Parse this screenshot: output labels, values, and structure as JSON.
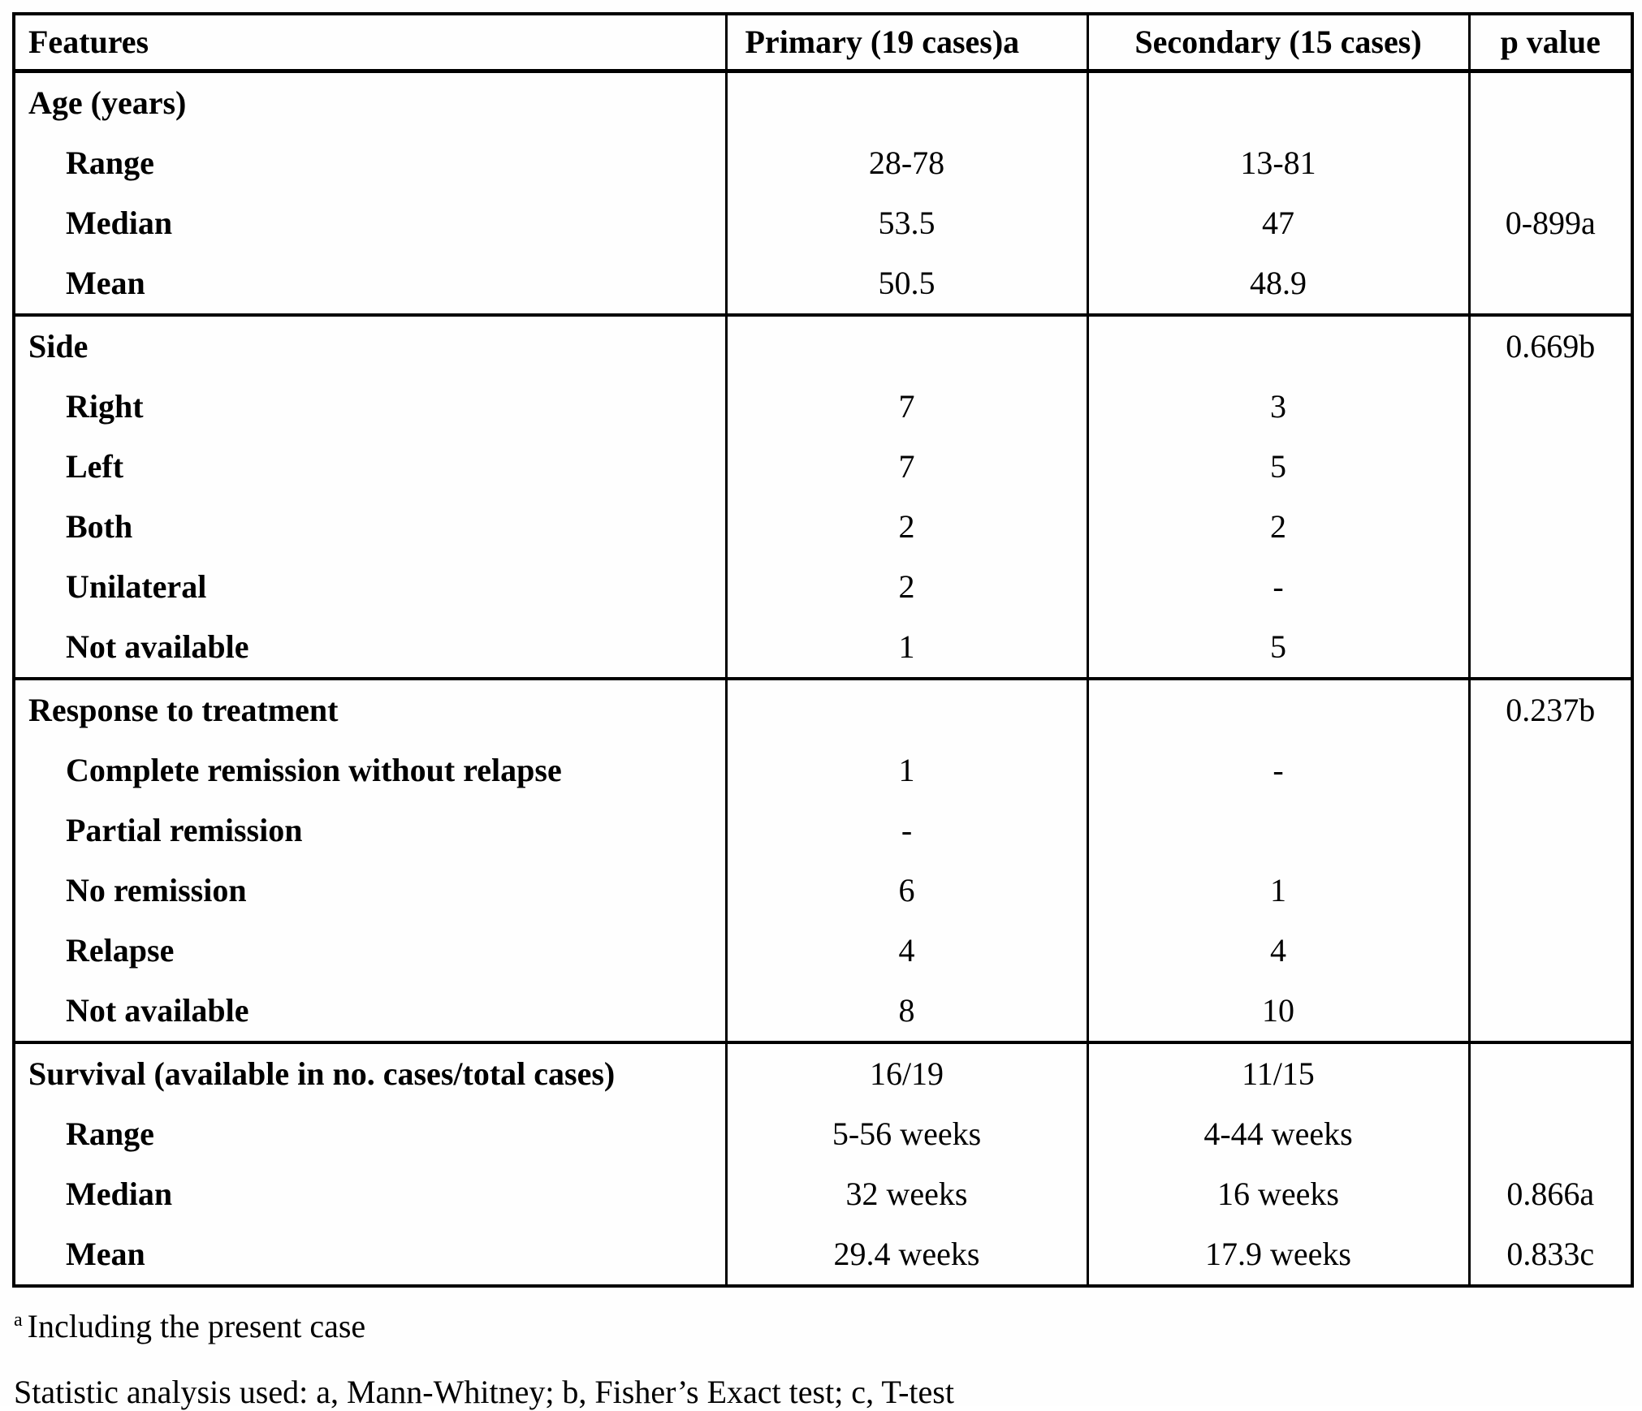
{
  "table": {
    "headers": {
      "features": "Features",
      "primary": "Primary (19 cases)a",
      "secondary": "Secondary (15 cases)",
      "p_value": "p value"
    },
    "rows": [
      {
        "label": "Age (years)",
        "primary": "",
        "secondary": "",
        "p": ""
      },
      {
        "label": "Range",
        "primary": "28-78",
        "secondary": "13-81",
        "p": ""
      },
      {
        "label": "Median",
        "primary": "53.5",
        "secondary": "47",
        "p": "0-899a"
      },
      {
        "label": "Mean",
        "primary": "50.5",
        "secondary": "48.9",
        "p": ""
      },
      {
        "label": "Side",
        "primary": "",
        "secondary": "",
        "p": "0.669b"
      },
      {
        "label": "Right",
        "primary": "7",
        "secondary": "3",
        "p": ""
      },
      {
        "label": "Left",
        "primary": "7",
        "secondary": "5",
        "p": ""
      },
      {
        "label": "Both",
        "primary": "2",
        "secondary": "2",
        "p": ""
      },
      {
        "label": "Unilateral",
        "primary": "2",
        "secondary": "-",
        "p": ""
      },
      {
        "label": "Not available",
        "primary": "1",
        "secondary": "5",
        "p": ""
      },
      {
        "label": "Response to treatment",
        "primary": "",
        "secondary": "",
        "p": "0.237b"
      },
      {
        "label": "Complete remission without relapse",
        "primary": "1",
        "secondary": "-",
        "p": ""
      },
      {
        "label": "Partial remission",
        "primary": "-",
        "secondary": "",
        "p": ""
      },
      {
        "label": "No remission",
        "primary": "6",
        "secondary": "1",
        "p": ""
      },
      {
        "label": "Relapse",
        "primary": "4",
        "secondary": "4",
        "p": ""
      },
      {
        "label": "Not available",
        "primary": "8",
        "secondary": "10",
        "p": ""
      },
      {
        "label": "Survival (available in no. cases/total cases)",
        "primary": "16/19",
        "secondary": "11/15",
        "p": ""
      },
      {
        "label": "Range",
        "primary": "5-56 weeks",
        "secondary": "4-44 weeks",
        "p": ""
      },
      {
        "label": "Median",
        "primary": "32 weeks",
        "secondary": "16 weeks",
        "p": "0.866a"
      },
      {
        "label": "Mean",
        "primary": "29.4 weeks",
        "secondary": "17.9 weeks",
        "p": "0.833c"
      }
    ]
  },
  "footnotes": {
    "note_a_marker": "a",
    "note_a_text": "Including the present case",
    "stats_note": "Statistic analysis used: a, Mann-Whitney; b, Fisher’s Exact test; c, T-test"
  }
}
